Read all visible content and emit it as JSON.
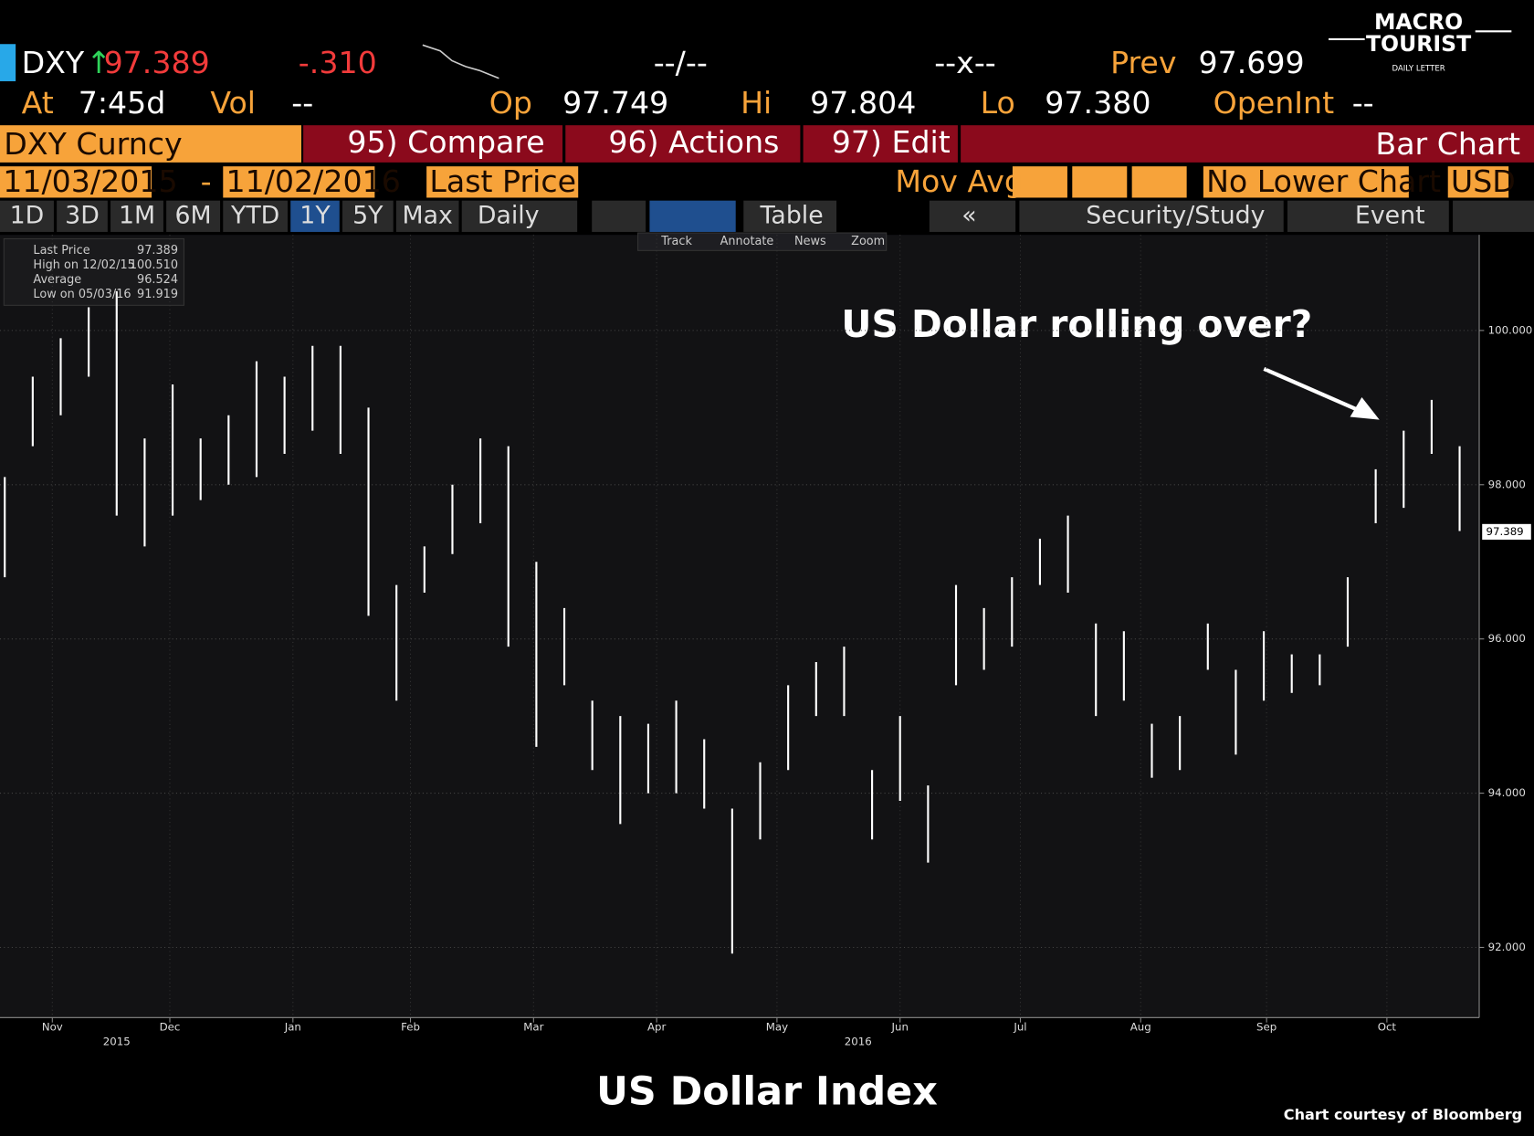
{
  "header": {
    "ticker": "DXY",
    "price": "97.389",
    "change": "-.310",
    "bidask": "--/--",
    "size": "--x--",
    "prev_label": "Prev",
    "prev": "97.699",
    "at_label": "At",
    "time": "7:45d",
    "vol_label": "Vol",
    "vol": "--",
    "op_label": "Op",
    "op": "97.749",
    "hi_label": "Hi",
    "hi": "97.804",
    "lo_label": "Lo",
    "lo": "97.380",
    "oi_label": "OpenInt",
    "oi": "--",
    "security": "DXY Curncy",
    "compare": "95) Compare",
    "actions": "96) Actions",
    "edit": "97) Edit",
    "view": "Bar Chart",
    "start": "11/03/2015",
    "dash": "-",
    "end": "11/02/2016",
    "field": "Last Price",
    "mov_avg": "Mov Avg",
    "lower": "No Lower Chart",
    "currency": "USD",
    "periods": [
      "1D",
      "3D",
      "1M",
      "6M",
      "YTD",
      "1Y",
      "5Y",
      "Max"
    ],
    "frequency": "Daily",
    "table": "Table",
    "study": "Security/Study",
    "event": "Event",
    "tools": [
      "Track",
      "Annotate",
      "News",
      "Zoom"
    ],
    "logo": [
      "MACRO",
      "TOURIST",
      "DAILY LETTER"
    ]
  },
  "chart_data": {
    "type": "ohlc_bar",
    "title": "US Dollar Index",
    "annotation": "US Dollar rolling over?",
    "credit": "Chart courtesy of Bloomberg",
    "color": "#ffffff",
    "legend": [
      {
        "name": "Last Price",
        "value": "97.389"
      },
      {
        "name": "High on 12/02/15",
        "value": "100.510"
      },
      {
        "name": "Average",
        "value": "96.524"
      },
      {
        "name": "Low on 05/03/16",
        "value": "91.919"
      }
    ],
    "last_price": {
      "value": 97.389,
      "label": "97.389"
    },
    "high": [
      98.1,
      99.4,
      99.9,
      100.3,
      100.51,
      98.6,
      99.3,
      98.6,
      98.9,
      99.6,
      99.4,
      99.8,
      99.8,
      99.0,
      96.7,
      97.2,
      98.0,
      98.6,
      98.5,
      97.0,
      96.4,
      95.2,
      95.0,
      94.9,
      95.2,
      94.7,
      93.8,
      94.4,
      95.4,
      95.7,
      95.9,
      94.3,
      95.0,
      94.1,
      96.7,
      96.4,
      96.8,
      97.3,
      97.6,
      96.2,
      96.1,
      94.9,
      95.0,
      96.2,
      95.6,
      96.1,
      95.8,
      95.8,
      96.8,
      98.2,
      98.7,
      99.1,
      98.5
    ],
    "low": [
      96.8,
      98.5,
      98.9,
      99.4,
      97.6,
      97.2,
      97.6,
      97.8,
      98.0,
      98.1,
      98.4,
      98.7,
      98.4,
      96.3,
      95.2,
      96.6,
      97.1,
      97.5,
      95.9,
      94.6,
      95.4,
      94.3,
      93.6,
      94.0,
      94.0,
      93.8,
      91.92,
      93.4,
      94.3,
      95.0,
      95.0,
      93.4,
      93.9,
      93.1,
      95.4,
      95.6,
      95.9,
      96.7,
      96.6,
      95.0,
      95.2,
      94.2,
      94.3,
      95.6,
      94.5,
      95.2,
      95.3,
      95.4,
      95.9,
      97.5,
      97.7,
      98.4,
      97.4
    ],
    "xlim": [
      -0.17,
      52.7
    ],
    "xticks": [
      {
        "value": 1.7,
        "label": "Nov"
      },
      {
        "value": 5.9,
        "label": "Dec"
      },
      {
        "value": 10.3,
        "label": "Jan"
      },
      {
        "value": 14.5,
        "label": "Feb"
      },
      {
        "value": 18.9,
        "label": "Mar"
      },
      {
        "value": 23.3,
        "label": "Apr"
      },
      {
        "value": 27.6,
        "label": "May"
      },
      {
        "value": 32,
        "label": "Jun"
      },
      {
        "value": 36.3,
        "label": "Jul"
      },
      {
        "value": 40.6,
        "label": "Aug"
      },
      {
        "value": 45.1,
        "label": "Sep"
      },
      {
        "value": 49.4,
        "label": "Oct"
      }
    ],
    "year_ticks": [
      {
        "value": 4,
        "label": "2015"
      },
      {
        "value": 30.5,
        "label": "2016"
      }
    ],
    "ylim": [
      91.09,
      101.24
    ],
    "yticks": [
      {
        "value": 92,
        "label": "92.000"
      },
      {
        "value": 94,
        "label": "94.000"
      },
      {
        "value": 96,
        "label": "96.000"
      },
      {
        "value": 98,
        "label": "98.000"
      },
      {
        "value": 100,
        "label": "100.000"
      }
    ],
    "grid": true
  }
}
